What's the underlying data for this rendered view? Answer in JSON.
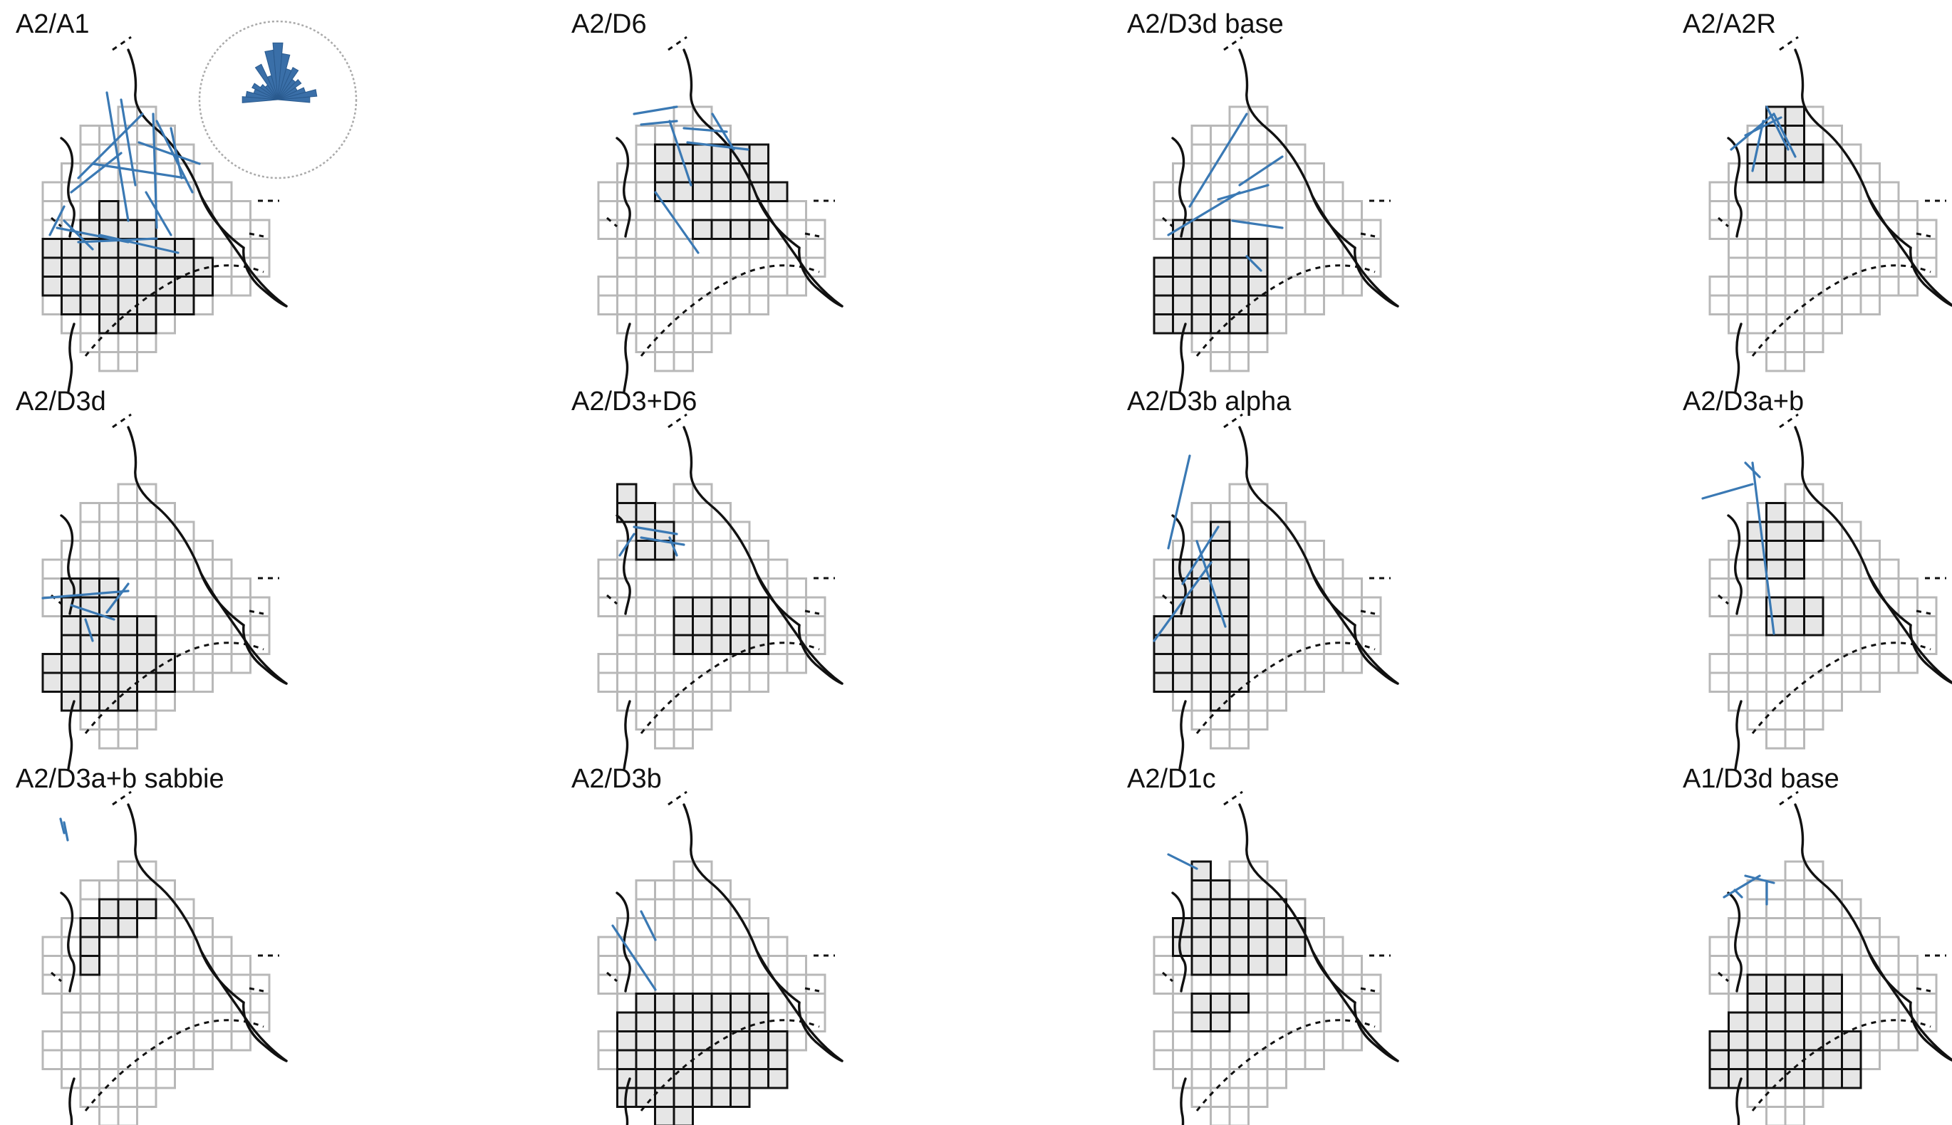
{
  "figure": {
    "panels": [
      {
        "title": "A2/A1",
        "rose": true
      },
      {
        "title": "A2/D6"
      },
      {
        "title": "A2/D3d base"
      },
      {
        "title": "A2/A2R"
      },
      {
        "title": "A2/D3d"
      },
      {
        "title": "A2/D3+D6"
      },
      {
        "title": "A2/D3b alpha"
      },
      {
        "title": "A2/D3a+b"
      },
      {
        "title": "A2/D3a+b sabbie"
      },
      {
        "title": "A2/D3b"
      },
      {
        "title": "A2/D1c"
      },
      {
        "title": "A1/D3d base"
      }
    ],
    "colors": {
      "segment": "#3a79b4",
      "highlight_fill": "#e6e6e6",
      "grid_gray": "#b8b8b8",
      "outline": "#111111"
    }
  }
}
